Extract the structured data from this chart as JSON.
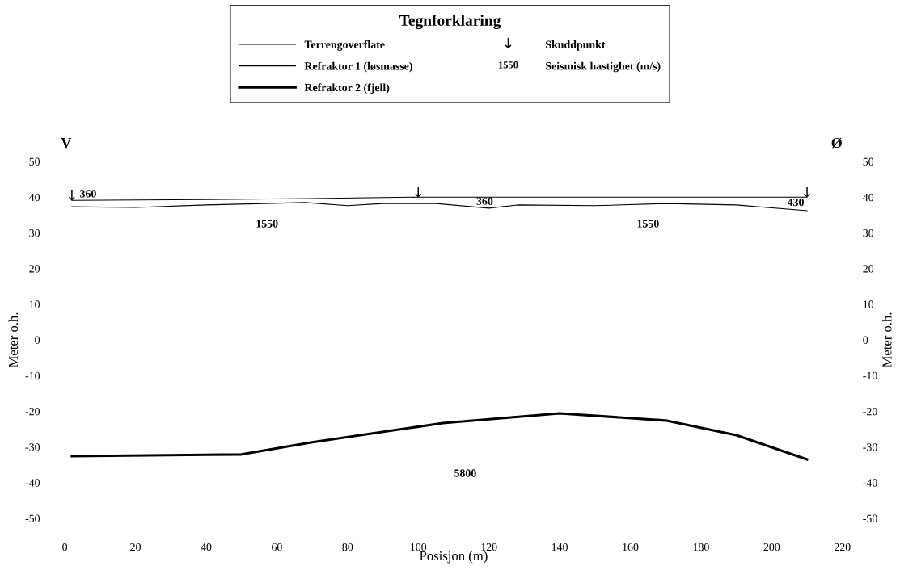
{
  "chart_data": {
    "type": "line",
    "xlabel": "Posisjon (m)",
    "ylabel": "Meter o.h.",
    "y2label": "Meter o.h.",
    "legend_title": "Tegnforklaring",
    "legend": "top",
    "xlim": [
      0,
      220
    ],
    "xticks": [
      0,
      20,
      40,
      60,
      80,
      100,
      120,
      140,
      160,
      180,
      200,
      220
    ],
    "ylim": [
      -50,
      50
    ],
    "yticks": [
      -50,
      -40,
      -30,
      -20,
      -10,
      0,
      10,
      20,
      30,
      40,
      50
    ],
    "y2lim": [
      -50,
      50
    ],
    "y2ticks": [
      -50,
      -40,
      -30,
      -20,
      -10,
      0,
      10,
      20,
      30,
      40,
      50
    ],
    "grid": false,
    "series": [
      {
        "name": "Terrengoverflate",
        "color": "#000000",
        "x": [
          2,
          40,
          70,
          100,
          210
        ],
        "values": [
          39.1,
          39.3,
          39.6,
          40,
          40
        ]
      },
      {
        "name": "Refraktor 1 (løsmasse)",
        "color": "#000000",
        "x": [
          2,
          20,
          40,
          68,
          80,
          90,
          105,
          120,
          128,
          150,
          170,
          190,
          210
        ],
        "values": [
          37.3,
          37.1,
          37.8,
          38.5,
          37.6,
          38.2,
          38.2,
          36.9,
          37.8,
          37.6,
          38.2,
          37.8,
          36.2
        ]
      },
      {
        "name": "Refraktor 2 (fjell)",
        "color": "#000000",
        "x": [
          2,
          50,
          70,
          107,
          140,
          170,
          190,
          210
        ],
        "values": [
          -32.6,
          -32.1,
          -28.7,
          -23.3,
          -20.6,
          -22.6,
          -26.7,
          -33.5
        ]
      }
    ],
    "annotations": [
      "V",
      "Ø",
      "Seismisk hastighet (m/s)",
      "Skuddpunkt",
      {
        "text": "↓",
        "x": 2,
        "y": 39.1
      },
      {
        "text": "↓",
        "x": 100,
        "y": 40
      },
      {
        "text": "↓",
        "x": 210,
        "y": 40
      },
      "360",
      "1550",
      "360",
      "1550",
      "430",
      "5800"
    ]
  }
}
